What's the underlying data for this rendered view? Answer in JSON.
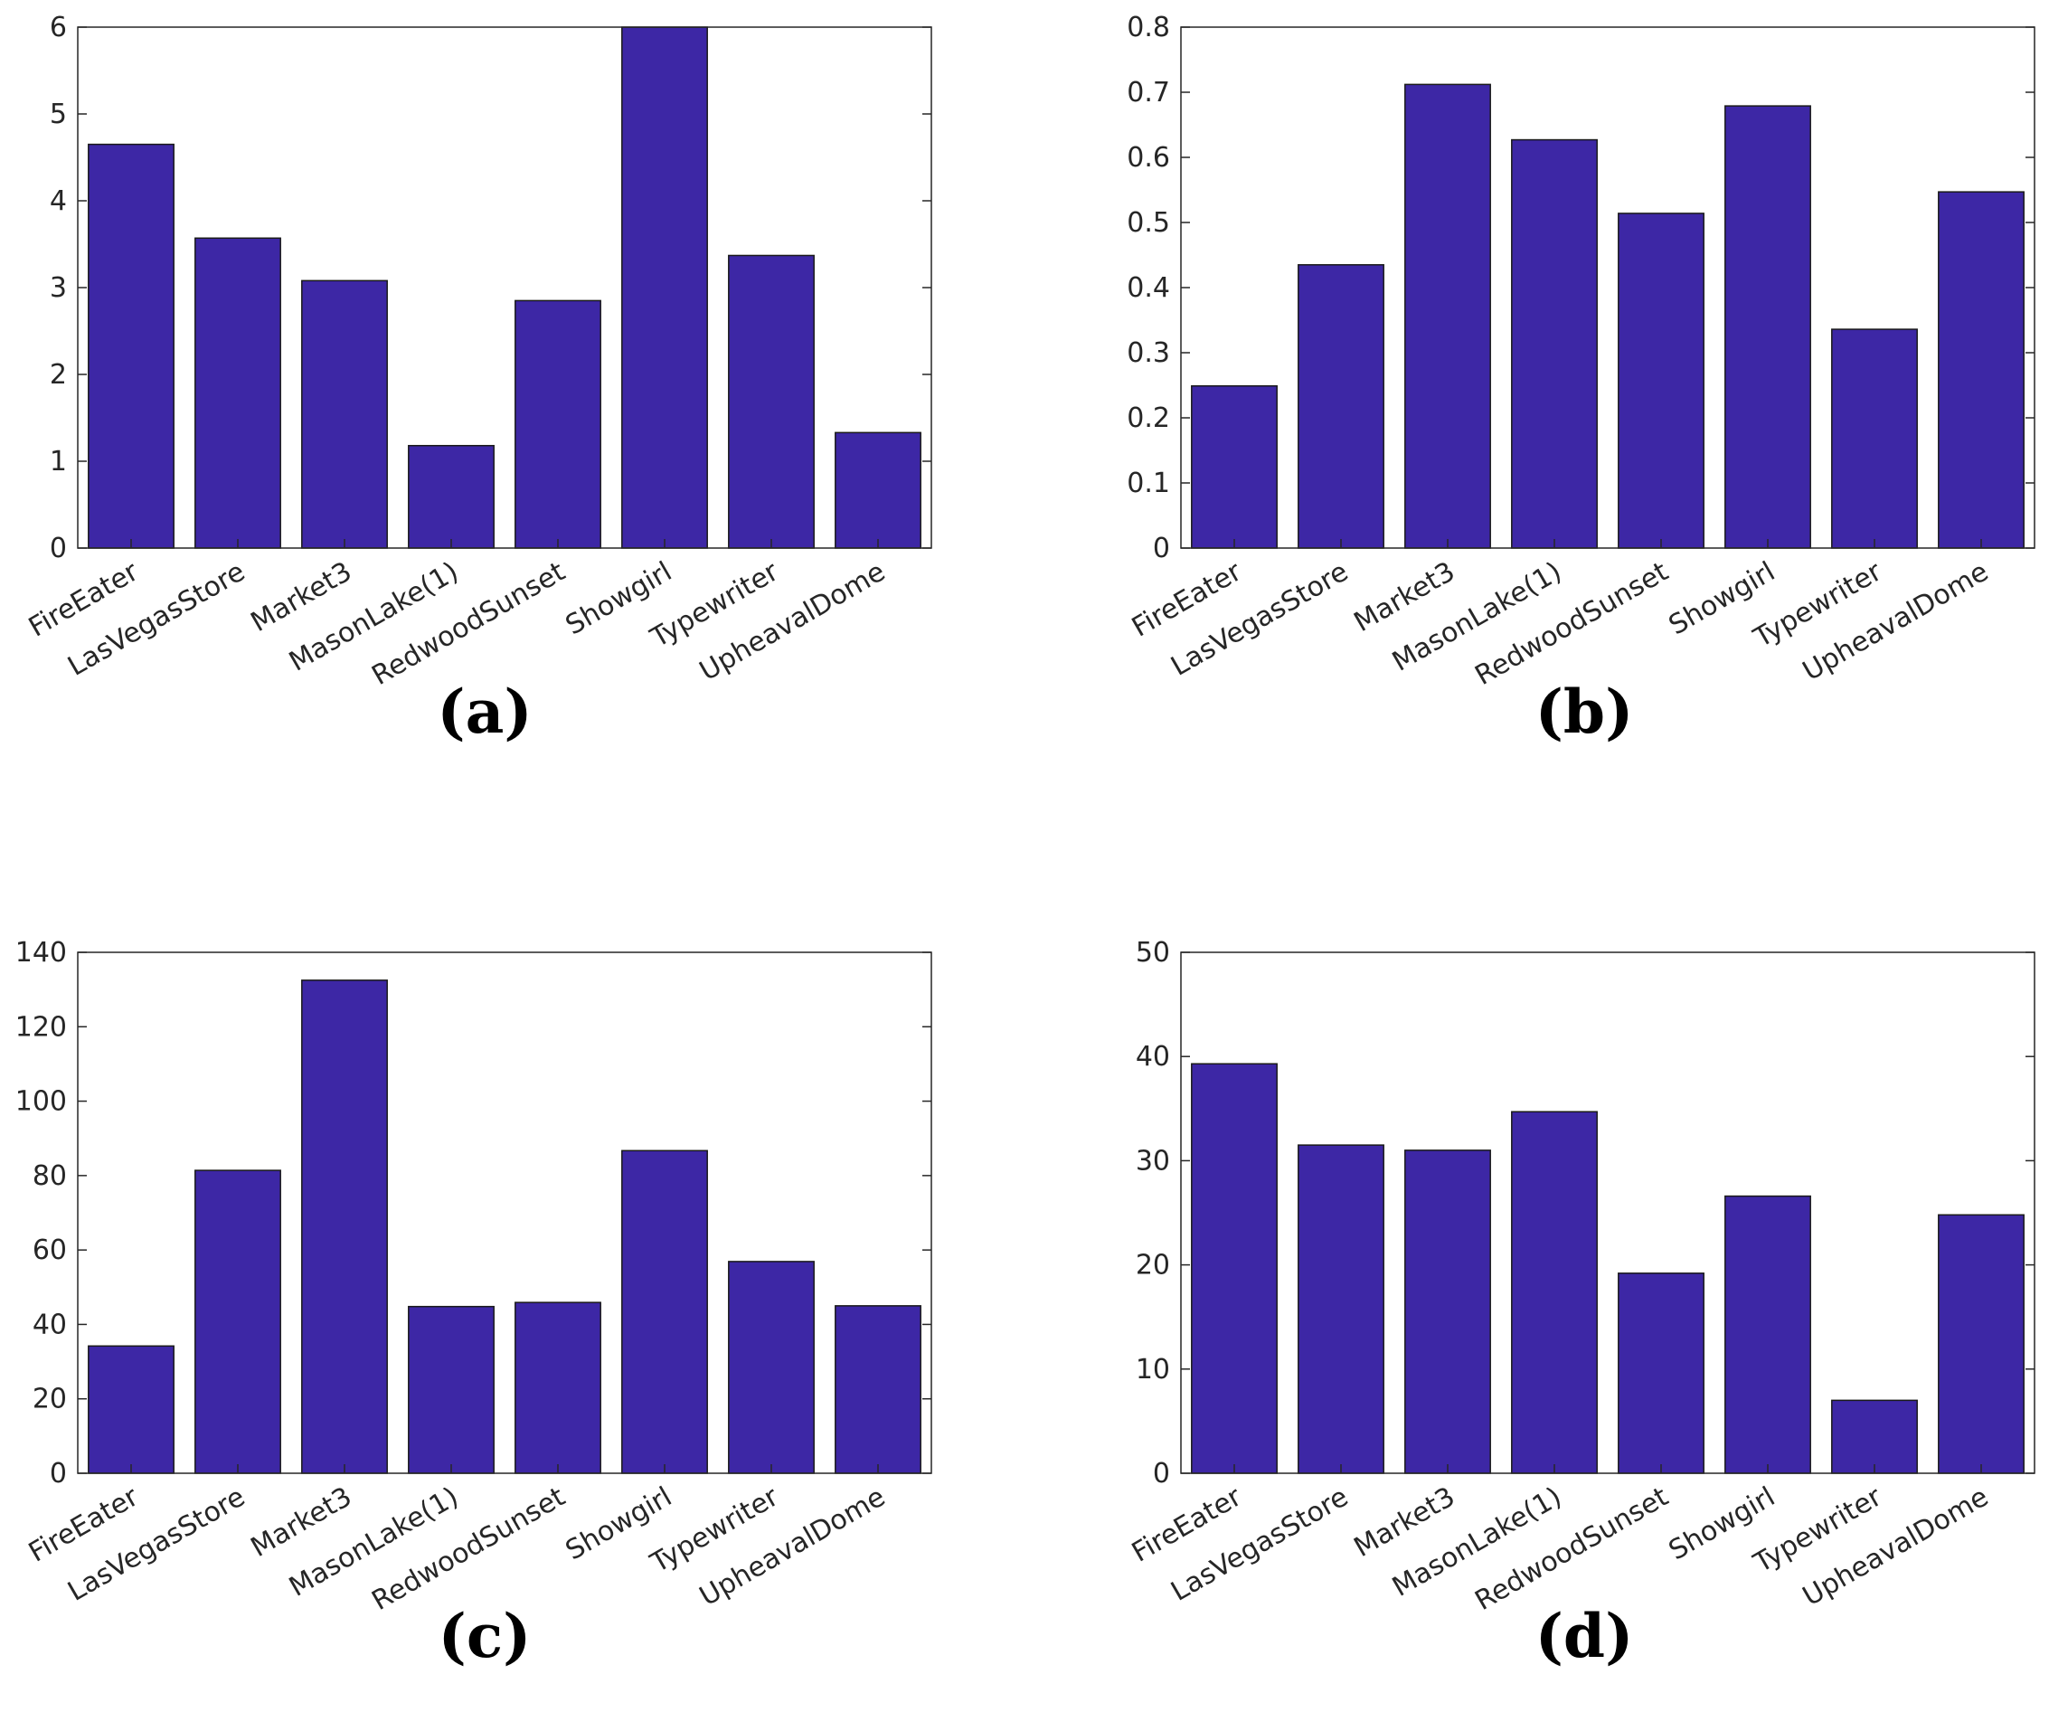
{
  "bar_color": "#3d27a5",
  "axis_color": "#262626",
  "chart_data": [
    {
      "type": "bar",
      "caption": "(a)",
      "categories": [
        "FireEater",
        "LasVegasStore",
        "Market3",
        "MasonLake(1)",
        "RedwoodSunset",
        "Showgirl",
        "Typewriter",
        "UpheavalDome"
      ],
      "values": [
        4.65,
        3.57,
        3.08,
        1.18,
        2.85,
        6.0,
        3.37,
        1.33
      ],
      "ylim": [
        0,
        6
      ],
      "yticks": [
        0,
        1,
        2,
        3,
        4,
        5,
        6
      ],
      "ytick_labels": [
        "0",
        "1",
        "2",
        "3",
        "4",
        "5",
        "6"
      ],
      "title": "",
      "xlabel": "",
      "ylabel": "",
      "grid": false
    },
    {
      "type": "bar",
      "caption": "(b)",
      "categories": [
        "FireEater",
        "LasVegasStore",
        "Market3",
        "MasonLake(1)",
        "RedwoodSunset",
        "Showgirl",
        "Typewriter",
        "UpheavalDome"
      ],
      "values": [
        0.249,
        0.435,
        0.712,
        0.627,
        0.514,
        0.679,
        0.336,
        0.547
      ],
      "ylim": [
        0,
        0.8
      ],
      "yticks": [
        0,
        0.1,
        0.2,
        0.3,
        0.4,
        0.5,
        0.6,
        0.7,
        0.8
      ],
      "ytick_labels": [
        "0",
        "0.1",
        "0.2",
        "0.3",
        "0.4",
        "0.5",
        "0.6",
        "0.7",
        "0.8"
      ],
      "title": "",
      "xlabel": "",
      "ylabel": "",
      "grid": false
    },
    {
      "type": "bar",
      "caption": "(c)",
      "categories": [
        "FireEater",
        "LasVegasStore",
        "Market3",
        "MasonLake(1)",
        "RedwoodSunset",
        "Showgirl",
        "Typewriter",
        "UpheavalDome"
      ],
      "values": [
        34.2,
        81.4,
        132.5,
        44.8,
        45.9,
        86.7,
        56.9,
        45.0
      ],
      "ylim": [
        0,
        140
      ],
      "yticks": [
        0,
        20,
        40,
        60,
        80,
        100,
        120,
        140
      ],
      "ytick_labels": [
        "0",
        "20",
        "40",
        "60",
        "80",
        "100",
        "120",
        "140"
      ],
      "title": "",
      "xlabel": "",
      "ylabel": "",
      "grid": false
    },
    {
      "type": "bar",
      "caption": "(d)",
      "categories": [
        "FireEater",
        "LasVegasStore",
        "Market3",
        "MasonLake(1)",
        "RedwoodSunset",
        "Showgirl",
        "Typewriter",
        "UpheavalDome"
      ],
      "values": [
        39.3,
        31.5,
        31.0,
        34.7,
        19.2,
        26.6,
        7.0,
        24.8
      ],
      "ylim": [
        0,
        50
      ],
      "yticks": [
        0,
        10,
        20,
        30,
        40,
        50
      ],
      "ytick_labels": [
        "0",
        "10",
        "20",
        "30",
        "40",
        "50"
      ],
      "title": "",
      "xlabel": "",
      "ylabel": "",
      "grid": false
    }
  ]
}
